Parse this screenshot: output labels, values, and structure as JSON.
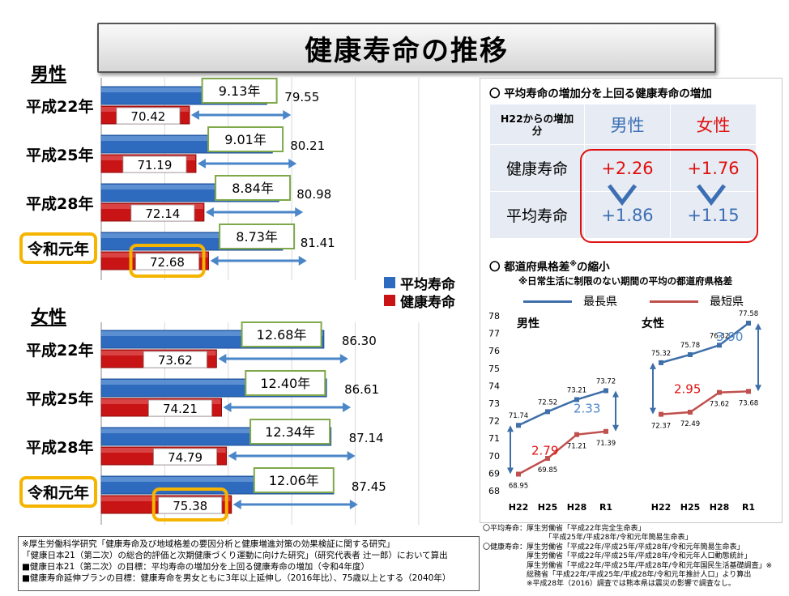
{
  "title": "健康寿命の推移",
  "male_label": "男性",
  "female_label": "女性",
  "legend": {
    "avg": "平均寿命",
    "healthy": "健康寿命",
    "avg_color": "#2e6bbf",
    "healthy_color": "#c81414"
  },
  "bar_chart": {
    "male": [
      {
        "year": "平成22年",
        "avg": 79.55,
        "healthy": 70.42,
        "diff": "9.13年",
        "highlight": false
      },
      {
        "year": "平成25年",
        "avg": 80.21,
        "healthy": 71.19,
        "diff": "9.01年",
        "highlight": false
      },
      {
        "year": "平成28年",
        "avg": 80.98,
        "healthy": 72.14,
        "diff": "8.84年",
        "highlight": false
      },
      {
        "year": "令和元年",
        "avg": 81.41,
        "healthy": 72.68,
        "diff": "8.73年",
        "highlight": true
      }
    ],
    "female": [
      {
        "year": "平成22年",
        "avg": 86.3,
        "healthy": 73.62,
        "diff": "12.68年",
        "highlight": false
      },
      {
        "year": "平成25年",
        "avg": 86.61,
        "healthy": 74.21,
        "diff": "12.40年",
        "highlight": false
      },
      {
        "year": "平成28年",
        "avg": 87.14,
        "healthy": 74.79,
        "diff": "12.34年",
        "highlight": false
      },
      {
        "year": "令和元年",
        "avg": 87.45,
        "healthy": 75.38,
        "diff": "12.06年",
        "highlight": true
      }
    ]
  },
  "increase_section": {
    "heading": "〇 平均寿命の増加分を上回る健康寿命の増加",
    "col_header": "H22からの増加分",
    "male": "男性",
    "female": "女性",
    "rows": [
      {
        "label": "健康寿命",
        "male": "+2.26",
        "female": "+1.76"
      },
      {
        "label": "平均寿命",
        "male": "+1.86",
        "female": "+1.15"
      }
    ]
  },
  "gap_section": {
    "heading": "〇 都道府県格差",
    "heading_sup": "※",
    "heading_tail": "の縮小",
    "subnote": "※日常生活に制限のない期間の平均の都道府県格差",
    "legend_longest": "最長県",
    "legend_shortest": "最短県",
    "longest_color": "#3e6fa8",
    "shortest_color": "#c0504d",
    "gap_color_blue": "#4a86c8",
    "gap_color_red": "#e01010"
  },
  "chart_data": {
    "type": "line",
    "x": [
      "H22",
      "H25",
      "H28",
      "R1"
    ],
    "ylim": [
      68,
      78
    ],
    "yticks": [
      68,
      69,
      70,
      71,
      72,
      73,
      74,
      75,
      76,
      77,
      78
    ],
    "panels": [
      {
        "name": "男性",
        "series": [
          {
            "name": "最長県",
            "values": [
              71.74,
              72.52,
              73.21,
              73.72
            ]
          },
          {
            "name": "最短県",
            "values": [
              68.95,
              69.85,
              71.21,
              71.39
            ]
          }
        ],
        "gap_start": "2.79",
        "gap_end": "2.33"
      },
      {
        "name": "女性",
        "series": [
          {
            "name": "最長県",
            "values": [
              75.32,
              75.78,
              76.32,
              77.58
            ]
          },
          {
            "name": "最短県",
            "values": [
              72.37,
              72.49,
              73.62,
              73.68
            ]
          }
        ],
        "gap_start": "2.95",
        "gap_end": "3.90"
      }
    ]
  },
  "left_notes": [
    "※厚生労働科学研究「健康寿命及び地域格差の要因分析と健康増進対策の効果検証に関する研究」",
    "「健康日本21（第二次）の総合的評価と次期健康づくり運動に向けた研究」（研究代表者 辻一郎）において算出",
    "■健康日本21（第二次）の目標：平均寿命の増加分を上回る健康寿命の増加（令和4年度）",
    "■健康寿命延伸プランの目標：健康寿命を男女ともに3年以上延伸し（2016年比）、75歳以上とする（2040年）"
  ],
  "right_notes": [
    "〇平均寿命：厚生労働省「平成22年完全生命表」",
    "　　　　　　　　　「平成25年/平成28年/令和元年簡易生命表」",
    "〇健康寿命：厚生労働省「平成22年/平成25年/平成28年/令和元年簡易生命表」",
    "　　　　　　厚生労働省「平成22年/平成25年/平成28年/令和元年人口動態統計」",
    "　　　　　　厚生労働省「平成22年/平成25年/平成28年/令和元年国民生活基礎調査」※",
    "　　　　　　総務省「平成22年/平成25年/平成28年/令和元年推計人口」より算出",
    "　　　　　　※平成28年（2016）調査では熊本県は震災の影響で調査なし。"
  ]
}
